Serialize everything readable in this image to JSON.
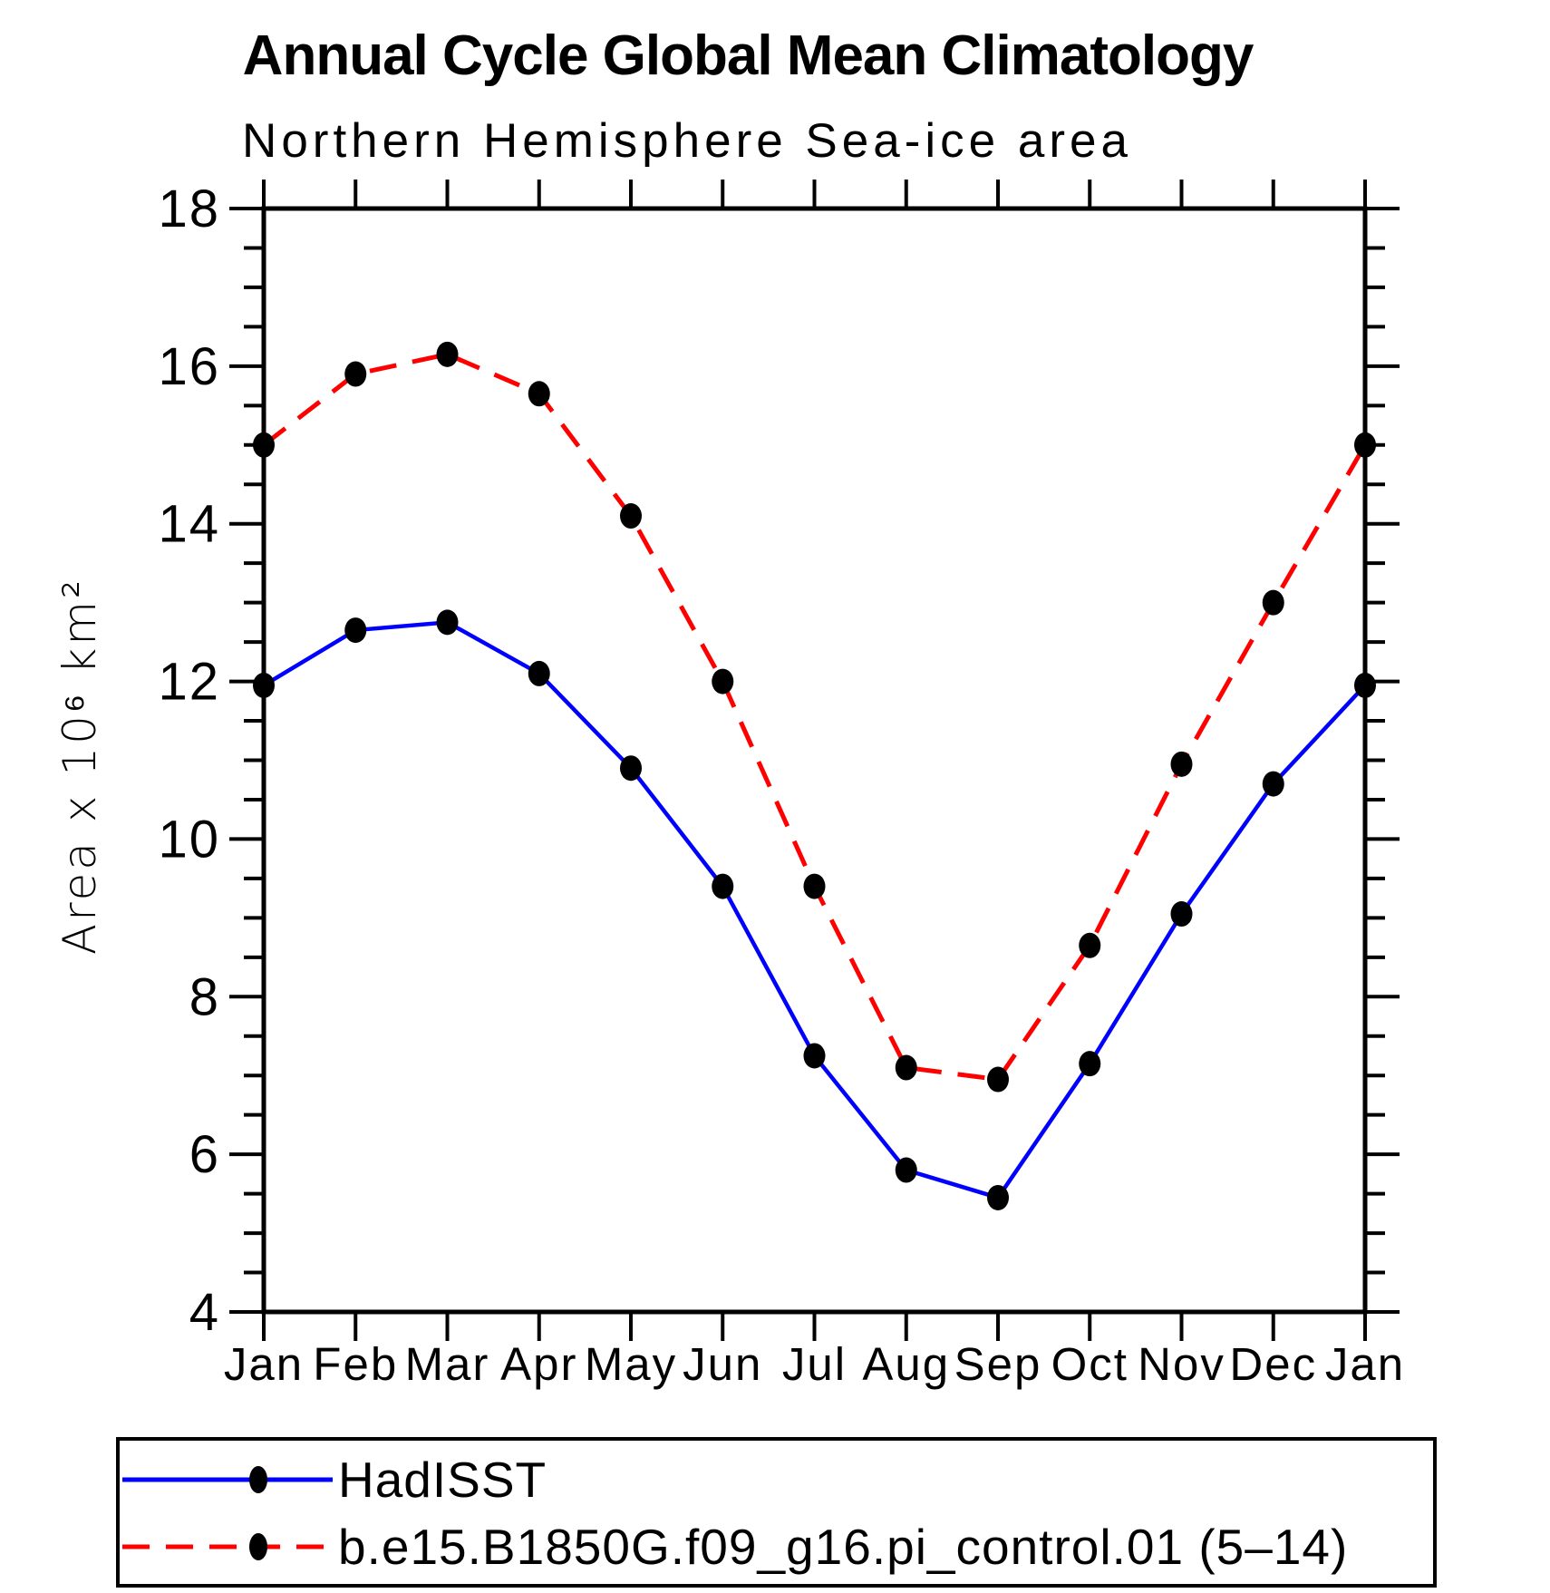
{
  "title": "Annual Cycle Global Mean Climatology",
  "subtitle": "Northern Hemisphere Sea-ice area",
  "legend": {
    "entries": [
      {
        "label": "HadISST",
        "color": "#0000ff",
        "style": "solid",
        "marker_color": "#000000"
      },
      {
        "label": "b.e15.B1850G.f09_g16.pi_control.01 (5–14)",
        "color": "#ff0000",
        "style": "dashed",
        "marker_color": "#000000"
      }
    ]
  },
  "chart_data": {
    "type": "line",
    "title": "Annual Cycle Global Mean Climatology",
    "subtitle": "Northern Hemisphere Sea-ice area",
    "ylabel": "Area x 10⁶ km²",
    "xlabel": "",
    "x_tick_labels": [
      "Jan",
      "Feb",
      "Mar",
      "Apr",
      "May",
      "Jun",
      "Jul",
      "Aug",
      "Sep",
      "Oct",
      "Nov",
      "Dec",
      "Jan"
    ],
    "ylim": [
      4,
      18
    ],
    "y_major_ticks": [
      4,
      6,
      8,
      10,
      12,
      14,
      16,
      18
    ],
    "y_minor_step": 0.5,
    "grid": false,
    "legend_position": "bottom",
    "axis_color": "#000000",
    "series": [
      {
        "name": "HadISST",
        "color": "#0000ff",
        "line_style": "solid",
        "marker": "dot",
        "marker_color": "#000000",
        "values": [
          11.95,
          12.65,
          12.75,
          12.1,
          10.9,
          9.4,
          7.25,
          5.8,
          5.45,
          7.15,
          9.05,
          10.7,
          11.95
        ]
      },
      {
        "name": "b.e15.B1850G.f09_g16.pi_control.01 (5–14)",
        "color": "#ff0000",
        "line_style": "dashed",
        "marker": "dot",
        "marker_color": "#000000",
        "values": [
          15.0,
          15.9,
          16.15,
          15.65,
          14.1,
          12.0,
          9.4,
          7.1,
          6.95,
          8.65,
          10.95,
          13.0,
          15.0
        ]
      }
    ]
  }
}
